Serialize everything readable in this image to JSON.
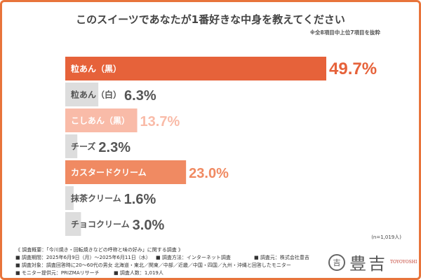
{
  "chart_data": {
    "type": "bar",
    "orientation": "horizontal",
    "title": "このスイーツであなたが1番好きな中身を教えてください",
    "subtitle": "※全8項目中上位7項目を抜粋",
    "categories": [
      "粒あん（黒）",
      "粒あん（白）",
      "こしあん（黒）",
      "チーズ",
      "カスタードクリーム",
      "抹茶クリーム",
      "チョコクリーム"
    ],
    "values": [
      49.7,
      6.3,
      13.7,
      2.3,
      23.0,
      1.6,
      3.0
    ],
    "value_labels": [
      "49.7%",
      "6.3%",
      "13.7%",
      "2.3%",
      "23.0%",
      "1.6%",
      "3.0%"
    ],
    "colors": [
      "#e6623a",
      "#dddddd",
      "#f9bba8",
      "#dddddd",
      "#f08a62",
      "#dddddd",
      "#dddddd"
    ],
    "value_colors": [
      "#e6623a",
      "#555555",
      "#f9bba8",
      "#555555",
      "#f08a62",
      "#555555",
      "#555555"
    ],
    "label_colors": [
      "#ffffff",
      "#555555",
      "#ffffff",
      "#555555",
      "#ffffff",
      "#555555",
      "#555555"
    ],
    "xlim": [
      0,
      50
    ],
    "grid": false,
    "legend": "none"
  },
  "sample_size": "(n=1,019人)",
  "footer": {
    "heading": "《 調査概要：「今川焼き・回転焼きなどの呼称と味の好み」に関する調査 》",
    "period": "■ 調査期間：2025年6月9日（月）〜2025年6月11日（水）",
    "method": "■ 調査方法：インターネット調査",
    "source": "■ 調査元：株式会社豊吉",
    "target": "■ 調査対象：調査回答時に20〜60代の男女 北海道・東北／関東／中部／近畿／中国・四国／九州・沖縄と回答したモニター",
    "provider": "■ モニター提供元：PRIZMAリサーチ",
    "count": "■ 調査人数：1,019人"
  },
  "logo": {
    "name": "豊吉",
    "english": "TOYOYOSHI",
    "seal": "吉"
  }
}
